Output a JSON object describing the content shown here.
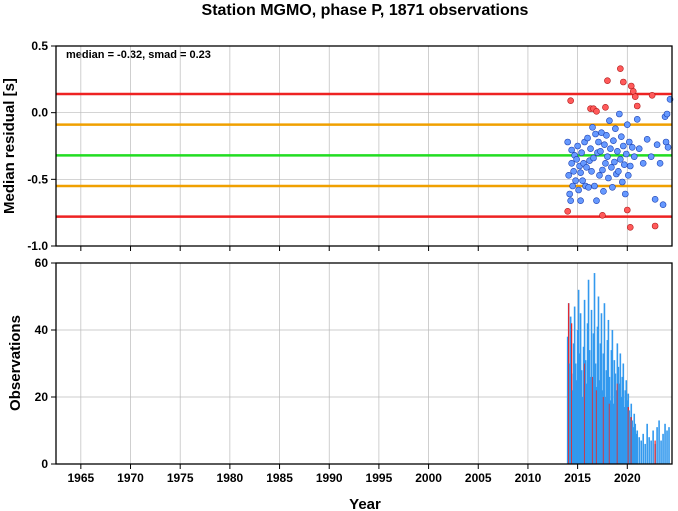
{
  "chart_data": [
    {
      "type": "scatter",
      "title": "Station MGMO, phase P, 1871 observations",
      "xlabel": "",
      "ylabel": "Median residual [s]",
      "xlim": [
        1962.5,
        2024.5
      ],
      "ylim": [
        -1.0,
        0.5
      ],
      "yticks": [
        "-1.0",
        "-0.5",
        "0.0",
        "0.5"
      ],
      "annotation": "median = -0.32, smad = 0.23",
      "reference_lines": [
        {
          "y": 0.14,
          "color": "#ee2222"
        },
        {
          "y": -0.09,
          "color": "#f0a000"
        },
        {
          "y": -0.32,
          "color": "#22dd22"
        },
        {
          "y": -0.55,
          "color": "#f0a000"
        },
        {
          "y": -0.78,
          "color": "#ee2222"
        }
      ],
      "inlier_color": "#6699ff",
      "outlier_color": "#ff5a5a",
      "inliers": [
        [
          2014.0,
          -0.22
        ],
        [
          2014.1,
          -0.47
        ],
        [
          2014.2,
          -0.61
        ],
        [
          2014.3,
          -0.66
        ],
        [
          2014.4,
          -0.28
        ],
        [
          2014.4,
          -0.38
        ],
        [
          2014.5,
          -0.55
        ],
        [
          2014.6,
          -0.44
        ],
        [
          2014.7,
          -0.32
        ],
        [
          2014.8,
          -0.51
        ],
        [
          2014.9,
          -0.35
        ],
        [
          2015.0,
          -0.25
        ],
        [
          2015.1,
          -0.58
        ],
        [
          2015.2,
          -0.4
        ],
        [
          2015.3,
          -0.45
        ],
        [
          2015.3,
          -0.66
        ],
        [
          2015.4,
          -0.3
        ],
        [
          2015.5,
          -0.51
        ],
        [
          2015.6,
          -0.38
        ],
        [
          2015.7,
          -0.22
        ],
        [
          2015.8,
          -0.55
        ],
        [
          2015.9,
          -0.41
        ],
        [
          2016.0,
          -0.19
        ],
        [
          2016.1,
          -0.56
        ],
        [
          2016.2,
          -0.36
        ],
        [
          2016.3,
          -0.27
        ],
        [
          2016.4,
          -0.44
        ],
        [
          2016.5,
          -0.11
        ],
        [
          2016.6,
          -0.34
        ],
        [
          2016.7,
          -0.55
        ],
        [
          2016.8,
          -0.16
        ],
        [
          2016.9,
          -0.66
        ],
        [
          2017.0,
          -0.3
        ],
        [
          2017.1,
          -0.22
        ],
        [
          2017.2,
          -0.47
        ],
        [
          2017.3,
          -0.29
        ],
        [
          2017.4,
          -0.15
        ],
        [
          2017.5,
          -0.43
        ],
        [
          2017.6,
          -0.59
        ],
        [
          2017.7,
          -0.24
        ],
        [
          2017.8,
          -0.38
        ],
        [
          2017.9,
          -0.17
        ],
        [
          2018.0,
          -0.33
        ],
        [
          2018.1,
          -0.49
        ],
        [
          2018.2,
          -0.06
        ],
        [
          2018.3,
          -0.27
        ],
        [
          2018.4,
          -0.41
        ],
        [
          2018.5,
          -0.56
        ],
        [
          2018.6,
          -0.21
        ],
        [
          2018.7,
          -0.37
        ],
        [
          2018.8,
          -0.12
        ],
        [
          2018.9,
          -0.46
        ],
        [
          2019.0,
          -0.29
        ],
        [
          2019.1,
          -0.44
        ],
        [
          2019.2,
          -0.01
        ],
        [
          2019.3,
          -0.35
        ],
        [
          2019.4,
          -0.18
        ],
        [
          2019.5,
          -0.52
        ],
        [
          2019.6,
          -0.25
        ],
        [
          2019.7,
          -0.39
        ],
        [
          2019.8,
          -0.61
        ],
        [
          2019.9,
          -0.31
        ],
        [
          2020.0,
          -0.09
        ],
        [
          2020.1,
          -0.47
        ],
        [
          2020.2,
          -0.22
        ],
        [
          2020.3,
          -0.4
        ],
        [
          2020.5,
          -0.26
        ],
        [
          2020.7,
          -0.33
        ],
        [
          2021.0,
          -0.05
        ],
        [
          2021.2,
          -0.27
        ],
        [
          2021.6,
          -0.38
        ],
        [
          2022.0,
          -0.2
        ],
        [
          2022.4,
          -0.33
        ],
        [
          2022.8,
          -0.65
        ],
        [
          2023.0,
          -0.24
        ],
        [
          2023.3,
          -0.38
        ],
        [
          2023.6,
          -0.69
        ],
        [
          2023.8,
          -0.03
        ],
        [
          2023.9,
          -0.22
        ],
        [
          2024.0,
          -0.01
        ],
        [
          2024.1,
          -0.26
        ],
        [
          2024.3,
          0.1
        ]
      ],
      "outliers": [
        [
          2014.0,
          -0.74
        ],
        [
          2014.3,
          0.09
        ],
        [
          2016.3,
          0.03
        ],
        [
          2016.6,
          0.03
        ],
        [
          2016.9,
          0.01
        ],
        [
          2017.5,
          -0.77
        ],
        [
          2017.8,
          0.04
        ],
        [
          2018.0,
          0.24
        ],
        [
          2019.3,
          0.33
        ],
        [
          2019.6,
          0.23
        ],
        [
          2020.0,
          -0.73
        ],
        [
          2020.3,
          -0.86
        ],
        [
          2020.4,
          0.2
        ],
        [
          2020.6,
          0.16
        ],
        [
          2020.8,
          0.12
        ],
        [
          2021.0,
          0.05
        ],
        [
          2022.8,
          -0.85
        ],
        [
          2022.5,
          0.13
        ]
      ]
    },
    {
      "type": "bar",
      "title": "",
      "xlabel": "Year",
      "ylabel": "Observations",
      "xlim": [
        1962.5,
        2024.5
      ],
      "ylim": [
        0,
        60
      ],
      "yticks": [
        "0",
        "20",
        "40",
        "60"
      ],
      "xticks": [
        "1965",
        "1970",
        "1975",
        "1980",
        "1985",
        "1990",
        "1995",
        "2000",
        "2005",
        "2010",
        "2015",
        "2020"
      ],
      "bar_color": "#3399ee",
      "outlier_bar_color": "#ee2222",
      "x": [
        2014.0,
        2014.1,
        2014.2,
        2014.3,
        2014.4,
        2014.5,
        2014.6,
        2014.7,
        2014.8,
        2014.9,
        2015.0,
        2015.1,
        2015.2,
        2015.3,
        2015.4,
        2015.5,
        2015.6,
        2015.7,
        2015.8,
        2015.9,
        2016.0,
        2016.1,
        2016.2,
        2016.3,
        2016.4,
        2016.5,
        2016.6,
        2016.7,
        2016.8,
        2016.9,
        2017.0,
        2017.1,
        2017.2,
        2017.3,
        2017.4,
        2017.5,
        2017.6,
        2017.7,
        2017.8,
        2017.9,
        2018.0,
        2018.1,
        2018.2,
        2018.3,
        2018.4,
        2018.5,
        2018.6,
        2018.7,
        2018.8,
        2018.9,
        2019.0,
        2019.1,
        2019.2,
        2019.3,
        2019.4,
        2019.5,
        2019.6,
        2019.7,
        2019.8,
        2019.9,
        2020.0,
        2020.1,
        2020.2,
        2020.3,
        2020.4,
        2020.5,
        2020.6,
        2020.7,
        2020.8,
        2020.9,
        2021.0,
        2021.2,
        2021.4,
        2021.6,
        2021.8,
        2022.0,
        2022.2,
        2022.4,
        2022.6,
        2022.8,
        2023.0,
        2023.2,
        2023.4,
        2023.6,
        2023.8,
        2024.0,
        2024.2
      ],
      "values": [
        38,
        48,
        30,
        44,
        27,
        22,
        36,
        47,
        30,
        25,
        40,
        52,
        33,
        45,
        28,
        20,
        35,
        49,
        31,
        24,
        42,
        55,
        34,
        26,
        46,
        21,
        39,
        57,
        30,
        23,
        41,
        50,
        25,
        36,
        45,
        22,
        33,
        48,
        20,
        28,
        37,
        43,
        26,
        19,
        34,
        40,
        18,
        31,
        27,
        22,
        36,
        29,
        24,
        33,
        20,
        26,
        30,
        17,
        22,
        25,
        19,
        21,
        16,
        14,
        18,
        13,
        11,
        15,
        12,
        9,
        10,
        8,
        7,
        9,
        6,
        12,
        8,
        7,
        10,
        6,
        11,
        13,
        7,
        9,
        12,
        10,
        11
      ],
      "outlier_values": [
        0,
        48,
        0,
        0,
        42,
        0,
        0,
        0,
        0,
        0,
        0,
        0,
        0,
        0,
        0,
        0,
        0,
        30,
        0,
        0,
        0,
        0,
        0,
        0,
        0,
        26,
        0,
        0,
        0,
        22,
        0,
        0,
        0,
        0,
        0,
        0,
        20,
        0,
        0,
        0,
        0,
        0,
        18,
        0,
        0,
        0,
        0,
        0,
        0,
        0,
        24,
        0,
        0,
        0,
        0,
        0,
        0,
        0,
        0,
        0,
        0,
        17,
        0,
        0,
        14,
        0,
        0,
        0,
        0,
        0,
        0,
        0,
        0,
        0,
        0,
        0,
        0,
        0,
        0,
        7,
        0,
        0,
        0,
        0,
        0,
        0,
        0
      ]
    }
  ]
}
